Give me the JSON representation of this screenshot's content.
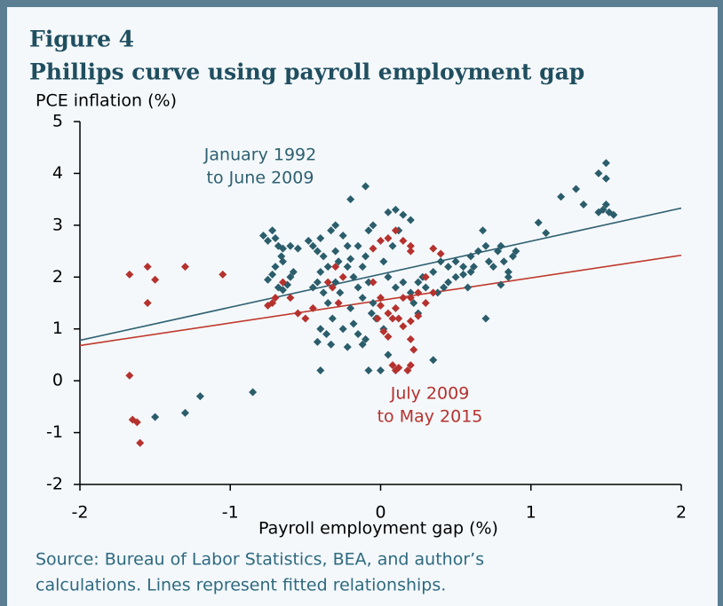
{
  "chart_data": {
    "type": "scatter",
    "figure_label": "Figure 4",
    "title": "Phillips curve using payroll employment gap",
    "y_label": "PCE inflation (%)",
    "x_label": "Payroll employment gap (%)",
    "source": [
      "Source: Bureau of Labor Statistics, BEA, and author’s",
      "calculations. Lines represent fitted relationships."
    ],
    "xlim": [
      -2,
      2
    ],
    "xticks": [
      -2,
      -1,
      0,
      1,
      2
    ],
    "ylim": [
      -2,
      5
    ],
    "yticks": [
      -2,
      -1,
      0,
      1,
      2,
      3,
      4,
      5
    ],
    "series": [
      {
        "color": "#2b5d6b",
        "x": [
          -1.5,
          -1.3,
          -1.2,
          -0.85,
          -0.78,
          -0.75,
          -0.72,
          -0.7,
          -0.68,
          -0.65,
          -0.6,
          -0.75,
          -0.72,
          -0.68,
          -0.65,
          -0.62,
          -0.7,
          -0.65,
          -0.6,
          -0.55,
          -0.58,
          -0.66,
          -0.48,
          -0.45,
          -0.42,
          -0.4,
          -0.38,
          -0.35,
          -0.33,
          -0.3,
          -0.45,
          -0.42,
          -0.4,
          -0.38,
          -0.35,
          -0.32,
          -0.4,
          -0.42,
          -0.4,
          -0.36,
          -0.33,
          -0.3,
          -0.28,
          -0.25,
          -0.22,
          -0.22,
          -0.2,
          -0.18,
          -0.15,
          -0.12,
          -0.2,
          -0.18,
          -0.15,
          -0.12,
          -0.1,
          -0.22,
          -0.25,
          -0.2,
          -0.1,
          -0.08,
          -0.05,
          -0.1,
          -0.08,
          -0.05,
          -0.03,
          -0.06,
          -0.08,
          -0.15,
          -0.12,
          -0.27,
          -0.3,
          0.02,
          0.05,
          0.1,
          0.15,
          0.2,
          0.12,
          0.08,
          0.05,
          0.1,
          0.15,
          0.2,
          0.25,
          0.28,
          0.3,
          0.02,
          0.05,
          0.0,
          0.22,
          0.25,
          0.35,
          0.35,
          0.4,
          0.45,
          0.5,
          0.55,
          0.6,
          0.62,
          0.65,
          0.7,
          0.72,
          0.75,
          0.78,
          0.8,
          0.82,
          0.85,
          0.88,
          0.9,
          0.45,
          0.5,
          0.55,
          0.6,
          0.8,
          0.85,
          0.68,
          0.7,
          0.58,
          0.38,
          0.42,
          1.05,
          1.1,
          1.2,
          1.3,
          1.35,
          1.45,
          1.5,
          1.48,
          1.5,
          1.5,
          1.52,
          1.55,
          1.45
        ],
        "values": [
          -0.7,
          -0.62,
          -0.3,
          -0.22,
          2.8,
          2.7,
          2.9,
          2.75,
          2.6,
          2.55,
          2.6,
          1.95,
          2.05,
          1.8,
          1.75,
          1.85,
          2.2,
          2.3,
          2.0,
          2.55,
          2.1,
          2.4,
          2.7,
          2.6,
          2.5,
          2.75,
          2.4,
          2.2,
          2.9,
          3.0,
          1.8,
          1.9,
          2.1,
          1.7,
          1.5,
          1.2,
          1.0,
          0.75,
          0.2,
          0.9,
          0.7,
          2.5,
          2.3,
          2.8,
          2.6,
          2.2,
          2.35,
          2.0,
          1.8,
          1.6,
          1.4,
          1.1,
          0.9,
          0.7,
          0.8,
          0.65,
          1.0,
          3.5,
          3.75,
          2.9,
          3.0,
          2.4,
          1.9,
          1.5,
          1.2,
          1.3,
          0.2,
          2.6,
          2.2,
          1.7,
          1.9,
          2.3,
          3.25,
          3.3,
          3.2,
          3.1,
          2.9,
          2.6,
          2.0,
          1.8,
          1.9,
          1.7,
          1.9,
          2.0,
          1.8,
          1.0,
          0.5,
          0.2,
          1.5,
          1.3,
          0.4,
          2.1,
          2.3,
          2.2,
          2.3,
          2.2,
          2.4,
          2.2,
          2.5,
          2.6,
          2.3,
          2.2,
          2.5,
          2.6,
          2.3,
          2.1,
          2.4,
          2.5,
          1.9,
          2.0,
          2.05,
          2.1,
          1.85,
          2.0,
          2.9,
          1.2,
          1.8,
          1.7,
          1.8,
          3.05,
          2.85,
          3.55,
          3.7,
          3.4,
          4.0,
          4.2,
          3.3,
          3.4,
          3.9,
          3.25,
          3.2,
          3.25
        ]
      },
      {
        "color": "#b5322e",
        "x": [
          -1.67,
          -1.55,
          -1.5,
          -1.55,
          -1.3,
          -1.05,
          -1.67,
          -1.65,
          -1.62,
          -1.6,
          -0.75,
          -0.72,
          -0.7,
          -0.65,
          -0.6,
          -0.55,
          -0.5,
          -0.45,
          -0.35,
          -0.32,
          -0.3,
          -0.25,
          -0.28,
          -0.05,
          0.0,
          0.05,
          0.1,
          0.15,
          0.2,
          0.2,
          -0.05,
          0.0,
          0.0,
          0.05,
          0.08,
          0.1,
          0.12,
          0.15,
          0.2,
          0.25,
          0.2,
          0.25,
          0.15,
          0.3,
          0.35,
          0.3,
          -0.02,
          0.02,
          0.05,
          0.2,
          0.22,
          0.08,
          0.1,
          0.12,
          0.18,
          0.2,
          0.35,
          0.4
        ],
        "values": [
          2.05,
          2.2,
          1.95,
          1.5,
          2.2,
          2.05,
          0.1,
          -0.75,
          -0.8,
          -1.2,
          1.45,
          1.5,
          1.6,
          1.9,
          1.6,
          1.3,
          1.2,
          1.4,
          1.9,
          1.8,
          2.2,
          2.0,
          1.5,
          2.55,
          2.7,
          2.75,
          2.9,
          2.7,
          2.5,
          2.6,
          1.9,
          1.6,
          1.45,
          1.3,
          1.2,
          1.4,
          1.2,
          1.05,
          1.15,
          1.25,
          1.6,
          1.7,
          1.6,
          1.5,
          1.7,
          2.0,
          1.2,
          0.95,
          0.85,
          0.8,
          0.6,
          0.3,
          0.2,
          0.25,
          0.2,
          0.3,
          2.55,
          2.45
        ]
      }
    ],
    "fit_lines": [
      {
        "color": "#2e6070",
        "x": [
          -2,
          2
        ],
        "values": [
          0.78,
          3.33
        ]
      },
      {
        "color": "#c0392b",
        "x": [
          -2,
          2
        ],
        "values": [
          0.68,
          2.42
        ]
      }
    ],
    "annotations": [
      {
        "text": [
          "January 1992",
          "to June 2009"
        ],
        "color": "#2e6070"
      },
      {
        "text": [
          "July 2009",
          "to May 2015"
        ],
        "color": "#b5322e"
      }
    ]
  }
}
